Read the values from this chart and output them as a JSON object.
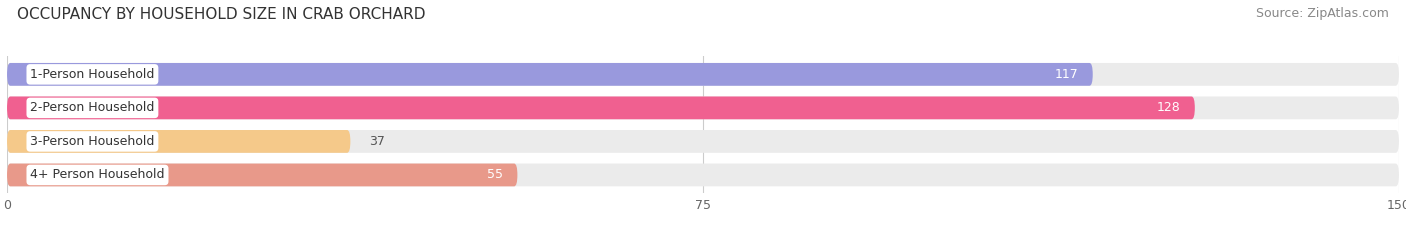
{
  "title": "OCCUPANCY BY HOUSEHOLD SIZE IN CRAB ORCHARD",
  "source": "Source: ZipAtlas.com",
  "categories": [
    "1-Person Household",
    "2-Person Household",
    "3-Person Household",
    "4+ Person Household"
  ],
  "values": [
    117,
    128,
    37,
    55
  ],
  "bar_colors": [
    "#9999dd",
    "#f06090",
    "#f5c98a",
    "#e8998a"
  ],
  "label_colors": [
    "white",
    "white",
    "#555555",
    "#555555"
  ],
  "xlim": [
    0,
    150
  ],
  "xticks": [
    0,
    75,
    150
  ],
  "background_color": "#ffffff",
  "bar_background_color": "#ebebeb",
  "title_fontsize": 11,
  "source_fontsize": 9,
  "label_fontsize": 9,
  "value_fontsize": 9
}
